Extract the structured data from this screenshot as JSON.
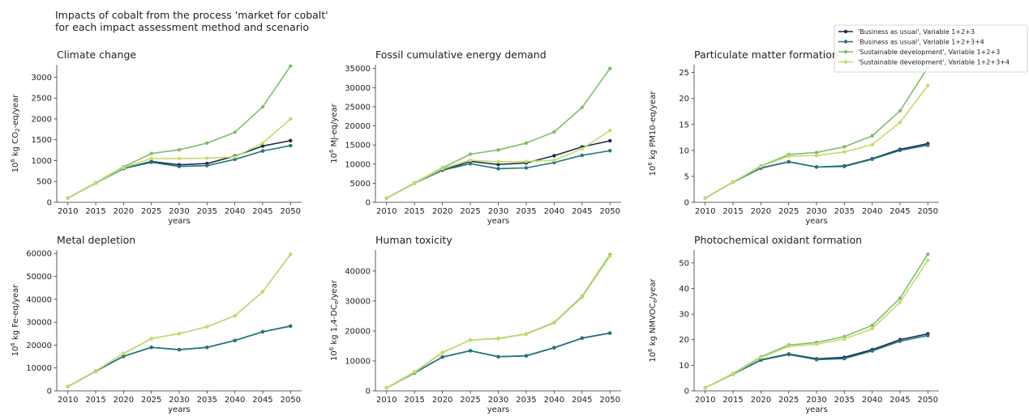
{
  "figure": {
    "title_line1": "Impacts of cobalt from the process 'market for cobalt'",
    "title_line2": "for each impact assessment method and scenario"
  },
  "legend": {
    "placement": "top-right",
    "entries": [
      {
        "label": "'Business as usual', Variable 1+2+3",
        "color": "#1b2a4e"
      },
      {
        "label": "'Business as usual', Variable 1+2+3+4",
        "color": "#23767e"
      },
      {
        "label": "'Sustainable development', Variable 1+2+3",
        "color": "#7fbf6a"
      },
      {
        "label": "'Sustainable development', Variable 1+2+3+4",
        "color": "#c2dc6e"
      }
    ]
  },
  "chart_data": [
    {
      "type": "line",
      "title": "Climate change",
      "xlabel": "years",
      "ylabel_prefix": "10",
      "ylabel_exp": "6",
      "ylabel_text": " kg CO",
      "ylabel_sub": "2",
      "ylabel_suffix": "-eq/year",
      "x": [
        2010,
        2015,
        2020,
        2025,
        2030,
        2035,
        2040,
        2045,
        2050
      ],
      "ylim": [
        0,
        3300
      ],
      "yticks": [
        0,
        500,
        1000,
        1500,
        2000,
        2500,
        3000
      ],
      "series": [
        {
          "name": "'Business as usual', Variable 1+2+3",
          "color": "#1b2a4e",
          "values": [
            100,
            460,
            810,
            980,
            900,
            930,
            1110,
            1350,
            1480
          ]
        },
        {
          "name": "'Business as usual', Variable 1+2+3+4",
          "color": "#23767e",
          "values": [
            100,
            460,
            810,
            960,
            860,
            880,
            1030,
            1230,
            1360
          ]
        },
        {
          "name": "'Sustainable development', Variable 1+2+3",
          "color": "#7fbf6a",
          "values": [
            100,
            470,
            850,
            1170,
            1260,
            1420,
            1680,
            2290,
            3270
          ]
        },
        {
          "name": "'Sustainable development', Variable 1+2+3+4",
          "color": "#c2dc6e",
          "values": [
            100,
            460,
            830,
            1050,
            1050,
            1060,
            1090,
            1420,
            2000
          ]
        }
      ]
    },
    {
      "type": "line",
      "title": "Fossil cumulative energy demand",
      "xlabel": "years",
      "ylabel_prefix": "10",
      "ylabel_exp": "6",
      "ylabel_text": " MJ-eq/year",
      "ylabel_sub": "",
      "ylabel_suffix": "",
      "x": [
        2010,
        2015,
        2020,
        2025,
        2030,
        2035,
        2040,
        2045,
        2050
      ],
      "ylim": [
        0,
        36000
      ],
      "yticks": [
        0,
        5000,
        10000,
        15000,
        20000,
        25000,
        30000,
        35000
      ],
      "series": [
        {
          "name": "'Business as usual', Variable 1+2+3",
          "color": "#1b2a4e",
          "values": [
            1100,
            5000,
            8400,
            10700,
            9900,
            10300,
            12200,
            14500,
            16100
          ]
        },
        {
          "name": "'Business as usual', Variable 1+2+3+4",
          "color": "#23767e",
          "values": [
            1100,
            5000,
            8400,
            10100,
            8800,
            9000,
            10400,
            12300,
            13500
          ]
        },
        {
          "name": "'Sustainable development', Variable 1+2+3",
          "color": "#7fbf6a",
          "values": [
            1100,
            5100,
            9000,
            12600,
            13700,
            15500,
            18400,
            24800,
            35000
          ]
        },
        {
          "name": "'Sustainable development', Variable 1+2+3+4",
          "color": "#c2dc6e",
          "values": [
            1100,
            5000,
            8800,
            11000,
            10600,
            10700,
            11000,
            14000,
            18800
          ]
        }
      ]
    },
    {
      "type": "line",
      "title": "Particulate matter formation",
      "xlabel": "years",
      "ylabel_prefix": "10",
      "ylabel_exp": "6",
      "ylabel_text": " kg PM10-eq/year",
      "ylabel_sub": "",
      "ylabel_suffix": "",
      "x": [
        2010,
        2015,
        2020,
        2025,
        2030,
        2035,
        2040,
        2045,
        2050
      ],
      "ylim": [
        0,
        26.5
      ],
      "yticks": [
        0,
        5,
        10,
        15,
        20,
        25
      ],
      "series": [
        {
          "name": "'Business as usual', Variable 1+2+3",
          "color": "#1b2a4e",
          "values": [
            0.8,
            3.9,
            6.6,
            7.8,
            6.8,
            7.0,
            8.4,
            10.2,
            11.3
          ]
        },
        {
          "name": "'Business as usual', Variable 1+2+3+4",
          "color": "#23767e",
          "values": [
            0.8,
            3.9,
            6.6,
            7.8,
            6.8,
            6.9,
            8.3,
            10.0,
            11.0
          ]
        },
        {
          "name": "'Sustainable development', Variable 1+2+3",
          "color": "#7fbf6a",
          "values": [
            0.8,
            3.9,
            7.0,
            9.2,
            9.6,
            10.7,
            12.8,
            17.6,
            26.0
          ]
        },
        {
          "name": "'Sustainable development', Variable 1+2+3+4",
          "color": "#c2dc6e",
          "values": [
            0.8,
            3.9,
            6.9,
            8.9,
            9.0,
            9.7,
            11.1,
            15.4,
            22.5
          ]
        }
      ]
    },
    {
      "type": "line",
      "title": "Metal depletion",
      "xlabel": "years",
      "ylabel_prefix": "10",
      "ylabel_exp": "6",
      "ylabel_text": " kg Fe-eq/year",
      "ylabel_sub": "",
      "ylabel_suffix": "",
      "x": [
        2010,
        2015,
        2020,
        2025,
        2030,
        2035,
        2040,
        2045,
        2050
      ],
      "ylim": [
        0,
        61500
      ],
      "yticks": [
        0,
        10000,
        20000,
        30000,
        40000,
        50000,
        60000
      ],
      "series": [
        {
          "name": "'Business as usual', Variable 1+2+3",
          "color": "#1b2a4e",
          "values": [
            1900,
            8600,
            15100,
            19000,
            18000,
            19000,
            22000,
            25800,
            28300
          ]
        },
        {
          "name": "'Business as usual', Variable 1+2+3+4",
          "color": "#23767e",
          "values": [
            1900,
            8600,
            15100,
            19000,
            18000,
            19000,
            22000,
            25800,
            28300
          ]
        },
        {
          "name": "'Sustainable development', Variable 1+2+3",
          "color": "#7fbf6a",
          "values": [
            1900,
            8700,
            16300,
            22800,
            25000,
            28000,
            32800,
            43300,
            59600
          ]
        },
        {
          "name": "'Sustainable development', Variable 1+2+3+4",
          "color": "#c2dc6e",
          "values": [
            1900,
            8700,
            16300,
            22800,
            25000,
            28000,
            32800,
            43300,
            59600
          ]
        }
      ]
    },
    {
      "type": "line",
      "title": "Human toxicity",
      "xlabel": "years",
      "ylabel_prefix": "10",
      "ylabel_exp": "6",
      "ylabel_text": " kg 1,4-DC",
      "ylabel_sub": "e",
      "ylabel_suffix": "/year",
      "x": [
        2010,
        2015,
        2020,
        2025,
        2030,
        2035,
        2040,
        2045,
        2050
      ],
      "ylim": [
        0,
        47000
      ],
      "yticks": [
        0,
        10000,
        20000,
        30000,
        40000
      ],
      "series": [
        {
          "name": "'Business as usual', Variable 1+2+3",
          "color": "#1b2a4e",
          "values": [
            1000,
            6000,
            11300,
            13400,
            11400,
            11700,
            14400,
            17600,
            19300
          ]
        },
        {
          "name": "'Business as usual', Variable 1+2+3+4",
          "color": "#23767e",
          "values": [
            1000,
            6000,
            11300,
            13400,
            11400,
            11700,
            14400,
            17600,
            19300
          ]
        },
        {
          "name": "'Sustainable development', Variable 1+2+3",
          "color": "#7fbf6a",
          "values": [
            1000,
            6300,
            12800,
            17000,
            17500,
            19000,
            22800,
            31500,
            45500
          ]
        },
        {
          "name": "'Sustainable development', Variable 1+2+3+4",
          "color": "#c2dc6e",
          "values": [
            1000,
            6200,
            12700,
            17000,
            17400,
            18900,
            22600,
            31200,
            45000
          ]
        }
      ]
    },
    {
      "type": "line",
      "title": "Photochemical oxidant formation",
      "xlabel": "years",
      "ylabel_prefix": "10",
      "ylabel_exp": "6",
      "ylabel_text": " kg NMVOC",
      "ylabel_sub": "e",
      "ylabel_suffix": "/year",
      "x": [
        2010,
        2015,
        2020,
        2025,
        2030,
        2035,
        2040,
        2045,
        2050
      ],
      "ylim": [
        0,
        55
      ],
      "yticks": [
        0,
        10,
        20,
        30,
        40,
        50
      ],
      "series": [
        {
          "name": "'Business as usual', Variable 1+2+3",
          "color": "#1b2a4e",
          "values": [
            1.2,
            6.6,
            12.1,
            14.4,
            12.5,
            13.1,
            16.1,
            20.0,
            22.3
          ]
        },
        {
          "name": "'Business as usual', Variable 1+2+3+4",
          "color": "#23767e",
          "values": [
            1.2,
            6.6,
            12.0,
            14.2,
            12.2,
            12.6,
            15.6,
            19.4,
            21.6
          ]
        },
        {
          "name": "'Sustainable development', Variable 1+2+3",
          "color": "#7fbf6a",
          "values": [
            1.2,
            6.8,
            13.3,
            17.9,
            18.9,
            21.2,
            25.6,
            36.2,
            53.4
          ]
        },
        {
          "name": "'Sustainable development', Variable 1+2+3+4",
          "color": "#c2dc6e",
          "values": [
            1.2,
            6.7,
            13.0,
            17.4,
            18.2,
            20.3,
            24.3,
            34.6,
            51.0
          ]
        }
      ]
    }
  ]
}
